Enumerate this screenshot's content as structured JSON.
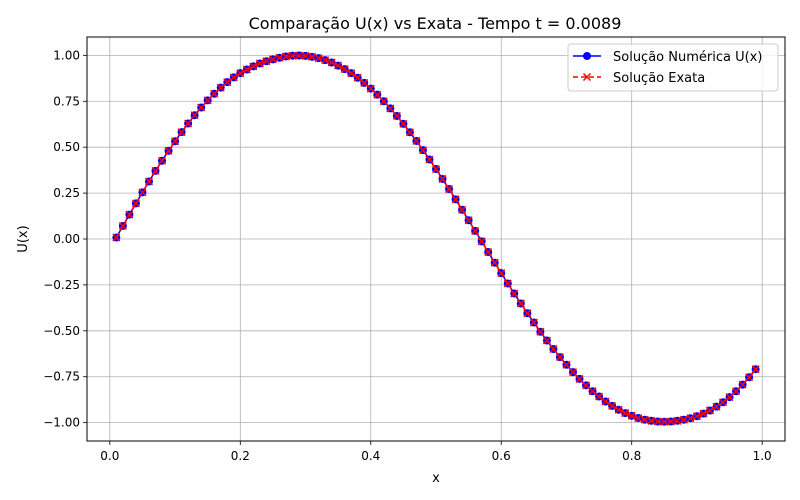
{
  "chart_data": {
    "type": "line",
    "title": "Comparação U(x) vs Exata - Tempo t = 0.0089",
    "xlabel": "x",
    "ylabel": "U(x)",
    "xlim": [
      -0.035,
      1.035
    ],
    "ylim": [
      -1.1,
      1.1
    ],
    "xticks": [
      0.0,
      0.2,
      0.4,
      0.6,
      0.8,
      1.0
    ],
    "xtick_labels": [
      "0.0",
      "0.2",
      "0.4",
      "0.6",
      "0.8",
      "1.0"
    ],
    "yticks": [
      -1.0,
      -0.75,
      -0.5,
      -0.25,
      0.0,
      0.25,
      0.5,
      0.75,
      1.0
    ],
    "ytick_labels": [
      "−1.00",
      "−0.75",
      "−0.50",
      "−0.25",
      "0.00",
      "0.25",
      "0.50",
      "0.75",
      "1.00"
    ],
    "grid": true,
    "legend_position": "top-right",
    "x": [
      0.01,
      0.02,
      0.03,
      0.04,
      0.05,
      0.06,
      0.07,
      0.08,
      0.09,
      0.1,
      0.11,
      0.12,
      0.13,
      0.14,
      0.15,
      0.16,
      0.17,
      0.18,
      0.19,
      0.2,
      0.21,
      0.22,
      0.23,
      0.24,
      0.25,
      0.26,
      0.27,
      0.28,
      0.29,
      0.3,
      0.31,
      0.32,
      0.33,
      0.34,
      0.35,
      0.36,
      0.37,
      0.38,
      0.39,
      0.4,
      0.41,
      0.42,
      0.43,
      0.44,
      0.45,
      0.46,
      0.47,
      0.48,
      0.49,
      0.5,
      0.51,
      0.52,
      0.53,
      0.54,
      0.55,
      0.56,
      0.57,
      0.58,
      0.59,
      0.6,
      0.61,
      0.62,
      0.63,
      0.64,
      0.65,
      0.66,
      0.67,
      0.68,
      0.69,
      0.7,
      0.71,
      0.72,
      0.73,
      0.74,
      0.75,
      0.76,
      0.77,
      0.78,
      0.79,
      0.8,
      0.81,
      0.82,
      0.83,
      0.84,
      0.85,
      0.86,
      0.87,
      0.88,
      0.89,
      0.9,
      0.91,
      0.92,
      0.93,
      0.94,
      0.95,
      0.96,
      0.97,
      0.98,
      0.99
    ],
    "series": [
      {
        "name": "Solução Numérica U(x)",
        "color": "#0000ff",
        "marker": "circle",
        "linestyle": "solid",
        "values": [
          0.008,
          0.071,
          0.133,
          0.194,
          0.254,
          0.313,
          0.371,
          0.426,
          0.48,
          0.532,
          0.582,
          0.629,
          0.674,
          0.716,
          0.755,
          0.791,
          0.824,
          0.854,
          0.88,
          0.903,
          0.923,
          0.94,
          0.956,
          0.968,
          0.978,
          0.987,
          0.994,
          0.998,
          0.999,
          0.997,
          0.992,
          0.985,
          0.974,
          0.961,
          0.944,
          0.925,
          0.903,
          0.878,
          0.85,
          0.819,
          0.786,
          0.75,
          0.711,
          0.67,
          0.627,
          0.581,
          0.534,
          0.484,
          0.433,
          0.381,
          0.327,
          0.272,
          0.216,
          0.159,
          0.102,
          0.044,
          -0.013,
          -0.071,
          -0.129,
          -0.186,
          -0.242,
          -0.297,
          -0.351,
          -0.404,
          -0.455,
          -0.505,
          -0.553,
          -0.599,
          -0.643,
          -0.685,
          -0.725,
          -0.762,
          -0.797,
          -0.829,
          -0.858,
          -0.885,
          -0.909,
          -0.93,
          -0.948,
          -0.963,
          -0.975,
          -0.984,
          -0.99,
          -0.994,
          -0.995,
          -0.994,
          -0.99,
          -0.984,
          -0.976,
          -0.965,
          -0.951,
          -0.934,
          -0.913,
          -0.889,
          -0.861,
          -0.829,
          -0.793,
          -0.753,
          -0.709
        ]
      },
      {
        "name": "Solução Exata",
        "color": "#ff0000",
        "marker": "x",
        "linestyle": "dashed",
        "values": [
          0.008,
          0.071,
          0.133,
          0.194,
          0.254,
          0.313,
          0.371,
          0.426,
          0.48,
          0.532,
          0.582,
          0.629,
          0.674,
          0.716,
          0.755,
          0.791,
          0.824,
          0.854,
          0.88,
          0.903,
          0.923,
          0.94,
          0.956,
          0.968,
          0.978,
          0.987,
          0.994,
          0.998,
          0.999,
          0.997,
          0.992,
          0.985,
          0.974,
          0.961,
          0.944,
          0.925,
          0.903,
          0.878,
          0.85,
          0.819,
          0.786,
          0.75,
          0.711,
          0.67,
          0.627,
          0.581,
          0.534,
          0.484,
          0.433,
          0.381,
          0.327,
          0.272,
          0.216,
          0.159,
          0.102,
          0.044,
          -0.013,
          -0.071,
          -0.129,
          -0.186,
          -0.242,
          -0.297,
          -0.351,
          -0.404,
          -0.455,
          -0.505,
          -0.553,
          -0.599,
          -0.643,
          -0.685,
          -0.725,
          -0.762,
          -0.797,
          -0.829,
          -0.858,
          -0.885,
          -0.909,
          -0.93,
          -0.948,
          -0.963,
          -0.975,
          -0.984,
          -0.99,
          -0.994,
          -0.995,
          -0.994,
          -0.99,
          -0.984,
          -0.976,
          -0.965,
          -0.951,
          -0.934,
          -0.913,
          -0.889,
          -0.861,
          -0.829,
          -0.793,
          -0.753,
          -0.709
        ]
      }
    ]
  }
}
